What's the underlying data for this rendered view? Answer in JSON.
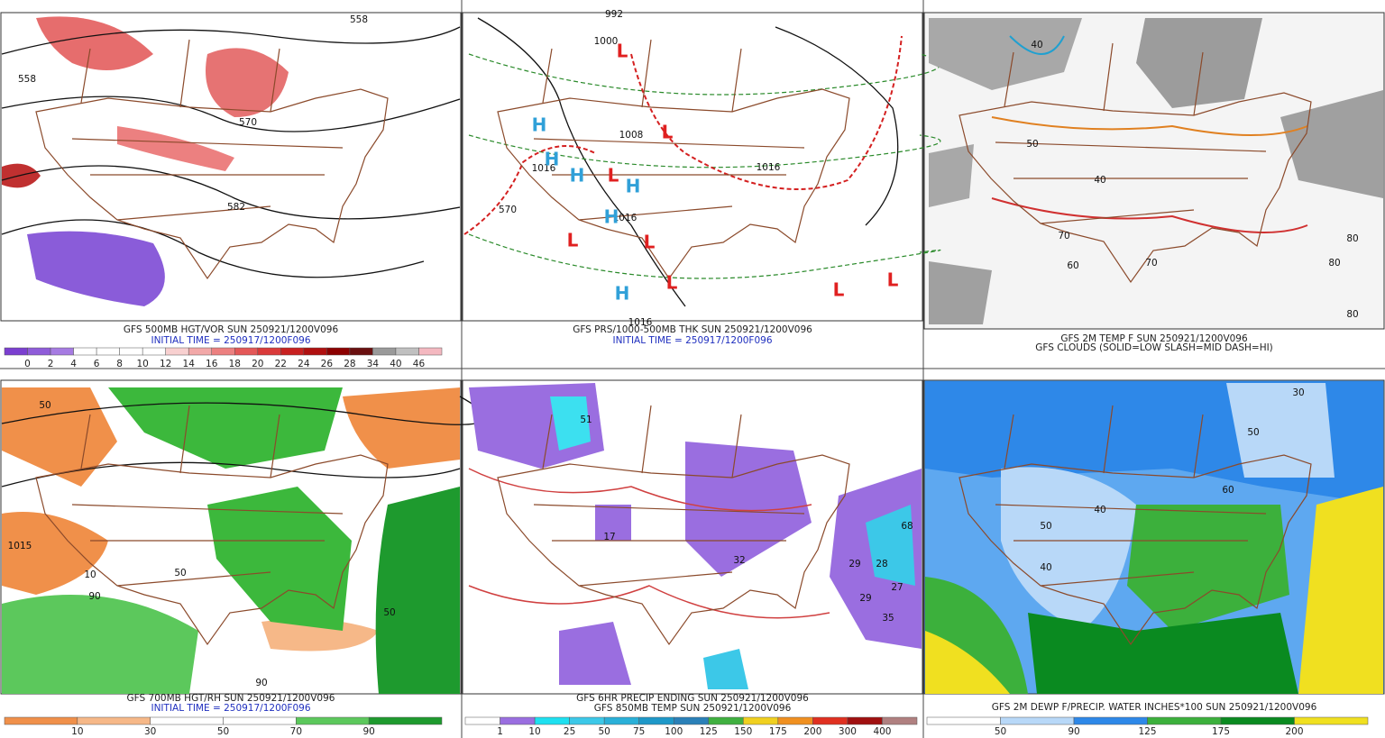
{
  "panels": [
    {
      "captions": [
        "GFS 500MB HGT/VOR SUN 250921/1200V096",
        "INITIAL TIME = 250917/1200F096"
      ],
      "map_labels": [
        "558",
        "570",
        "582",
        "558"
      ],
      "colorbar": {
        "labels": [
          "0",
          "2",
          "4",
          "6",
          "8",
          "10",
          "12",
          "14",
          "16",
          "18",
          "20",
          "22",
          "24",
          "26",
          "28",
          "34",
          "40",
          "46"
        ],
        "colors": [
          "#7b3fd0",
          "#8f5cd9",
          "#a67be2",
          "#ffffff",
          "#ffffff",
          "#ffffff",
          "#ffffff",
          "#f8d0d0",
          "#f2a8a8",
          "#ec8080",
          "#e45858",
          "#da3a3a",
          "#c82020",
          "#b01010",
          "#8c0000",
          "#6a1010",
          "#9a9a9a",
          "#c0c0c0",
          "#f4b8c0"
        ]
      }
    },
    {
      "captions": [
        "GFS PRS/1000-500MB THK SUN 250921/1200V096",
        "INITIAL TIME = 250917/1200F096"
      ],
      "map_labels": [
        "992",
        "1000",
        "1008",
        "1016",
        "1016",
        "1016",
        "1016",
        "570",
        "L",
        "L",
        "L",
        "L",
        "L",
        "L",
        "L",
        "L",
        "H",
        "H",
        "H",
        "H",
        "H",
        "H"
      ]
    },
    {
      "captions": [
        "GFS 2M TEMP F SUN 250921/1200V096",
        "GFS CLOUDS (SOLID=LOW SLASH=MID DASH=HI)"
      ],
      "map_labels": [
        "40",
        "40",
        "50",
        "60",
        "70",
        "70",
        "80",
        "80",
        "80"
      ]
    },
    {
      "captions": [
        "GFS 700MB HGT/RH SUN 250921/1200V096",
        "INITIAL TIME = 250917/1200F096"
      ],
      "map_labels": [
        "50",
        "50",
        "90",
        "10",
        "1015",
        "50",
        "90"
      ],
      "colorbar": {
        "labels": [
          "10",
          "30",
          "50",
          "70",
          "90"
        ],
        "colors": [
          "#f0904a",
          "#f6b888",
          "#ffffff",
          "#ffffff",
          "#5cc85c",
          "#1e9a2e"
        ]
      }
    },
    {
      "captions": [
        "GFS 6HR PRECIP ENDING SUN 250921/1200V096",
        "GFS 850MB TEMP SUN 250921/1200V096"
      ],
      "map_labels": [
        "51",
        "17",
        "32",
        "29",
        "28",
        "27",
        "29",
        "35",
        "68"
      ],
      "colorbar": {
        "labels": [
          "1",
          "10",
          "25",
          "50",
          "75",
          "100",
          "125",
          "150",
          "175",
          "200",
          "300",
          "400"
        ],
        "colors": [
          "#ffffff",
          "#9a6ee0",
          "#1ee0f0",
          "#3cc8e8",
          "#2ab0d8",
          "#1e98c8",
          "#2a80b8",
          "#40b040",
          "#f0d020",
          "#f09020",
          "#e03020",
          "#a01010",
          "#b08080"
        ]
      }
    },
    {
      "captions": [
        "GFS 2M DEWP F/PRECIP. WATER INCHES*100 SUN 250921/1200V096"
      ],
      "map_labels": [
        "30",
        "50",
        "40",
        "40",
        "50",
        "60"
      ],
      "colorbar": {
        "labels": [
          "50",
          "90",
          "125",
          "175",
          "200"
        ],
        "colors": [
          "#ffffff",
          "#b8d8f8",
          "#2e88e8",
          "#3cb03c",
          "#0a8a20",
          "#f0e020"
        ]
      }
    }
  ]
}
